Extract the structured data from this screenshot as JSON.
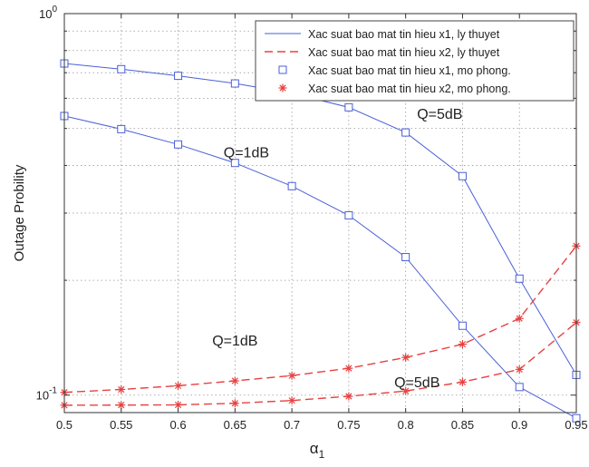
{
  "chart_data": {
    "type": "line",
    "xlabel": "α",
    "xlabel_sub": "1",
    "ylabel": "Outage Probility",
    "yscale": "log",
    "xlim": [
      0.5,
      0.95
    ],
    "ylim": [
      0.09,
      1.0
    ],
    "grid": true,
    "legend_position": "top-right",
    "x_ticks": [
      {
        "v": 0.5,
        "label": "0.5"
      },
      {
        "v": 0.55,
        "label": "0.55"
      },
      {
        "v": 0.6,
        "label": "0.6"
      },
      {
        "v": 0.65,
        "label": "0.65"
      },
      {
        "v": 0.7,
        "label": "0.7"
      },
      {
        "v": 0.75,
        "label": "0.75"
      },
      {
        "v": 0.8,
        "label": "0.8"
      },
      {
        "v": 0.85,
        "label": "0.85"
      },
      {
        "v": 0.9,
        "label": "0.9"
      },
      {
        "v": 0.95,
        "label": "0.95"
      }
    ],
    "y_ticks": [
      {
        "v": 0.1,
        "base": "10",
        "exp": "-1"
      },
      {
        "v": 1.0,
        "base": "10",
        "exp": "0"
      }
    ],
    "x": [
      0.5,
      0.55,
      0.6,
      0.65,
      0.7,
      0.75,
      0.8,
      0.85,
      0.9,
      0.95
    ],
    "series": [
      {
        "name": "Xac suat bao mat tin hieu x1, ly thuyet",
        "style": "solid",
        "color": "#4a5fd8",
        "marker": "none",
        "values": [
          0.74,
          0.715,
          0.687,
          0.656,
          0.618,
          0.568,
          0.488,
          0.375,
          0.202,
          0.113
        ]
      },
      {
        "name": "Xac suat bao mat tin hieu x1, ly thuyet",
        "style": "solid",
        "color": "#4a5fd8",
        "marker": "none",
        "values": [
          0.539,
          0.498,
          0.454,
          0.406,
          0.353,
          0.296,
          0.23,
          0.152,
          0.105,
          0.087
        ]
      },
      {
        "name": "Xac suat bao mat tin hieu x2, ly thuyet",
        "style": "dashed",
        "color": "#e84040",
        "marker": "none",
        "values": [
          0.1017,
          0.1035,
          0.1058,
          0.109,
          0.1125,
          0.1176,
          0.1255,
          0.136,
          0.1588,
          0.246
        ]
      },
      {
        "name": "Xac suat bao mat tin hieu x2, ly thuyet",
        "style": "dashed",
        "color": "#e84040",
        "marker": "none",
        "values": [
          0.0941,
          0.0942,
          0.0943,
          0.0952,
          0.0968,
          0.0993,
          0.1025,
          0.1082,
          0.1168,
          0.155
        ]
      },
      {
        "name": "Xac suat bao mat tin hieu x1, mo phong.",
        "style": "none",
        "color": "#4a5fd8",
        "marker": "square",
        "values": [
          0.74,
          0.715,
          0.687,
          0.656,
          0.618,
          0.568,
          0.488,
          0.375,
          0.202,
          0.113
        ]
      },
      {
        "name": "Xac suat bao mat tin hieu x1, mo phong.",
        "style": "none",
        "color": "#4a5fd8",
        "marker": "square",
        "values": [
          0.539,
          0.498,
          0.454,
          0.406,
          0.353,
          0.296,
          0.23,
          0.152,
          0.105,
          0.087
        ]
      },
      {
        "name": "Xac suat bao mat tin hieu x2, mo phong.",
        "style": "none",
        "color": "#e84040",
        "marker": "asterisk",
        "values": [
          0.1017,
          0.1035,
          0.1058,
          0.109,
          0.1125,
          0.1176,
          0.1255,
          0.136,
          0.1588,
          0.246
        ]
      },
      {
        "name": "Xac suat bao mat tin hieu x2, mo phong.",
        "style": "none",
        "color": "#e84040",
        "marker": "asterisk",
        "values": [
          0.0941,
          0.0942,
          0.0943,
          0.0952,
          0.0968,
          0.0993,
          0.1025,
          0.1082,
          0.1168,
          0.155
        ]
      }
    ],
    "legend": [
      {
        "label": "Xac suat bao mat tin hieu x1, ly thuyet",
        "style": "solid",
        "color": "#4a5fd8",
        "marker": "none"
      },
      {
        "label": "Xac suat bao mat tin hieu x2, ly thuyet",
        "style": "dashed",
        "color": "#e84040",
        "marker": "none"
      },
      {
        "label": "Xac suat bao mat tin hieu x1, mo phong.",
        "style": "none",
        "color": "#4a5fd8",
        "marker": "square"
      },
      {
        "label": "Xac suat bao mat tin hieu x2, mo phong.",
        "style": "none",
        "color": "#e84040",
        "marker": "asterisk"
      }
    ],
    "annotations": [
      {
        "text": "Q=5dB",
        "x": 0.81,
        "y": 0.53
      },
      {
        "text": "Q=1dB",
        "x": 0.64,
        "y": 0.42
      },
      {
        "text": "Q=1dB",
        "x": 0.63,
        "y": 0.135
      },
      {
        "text": "Q=5dB",
        "x": 0.79,
        "y": 0.105
      }
    ]
  }
}
